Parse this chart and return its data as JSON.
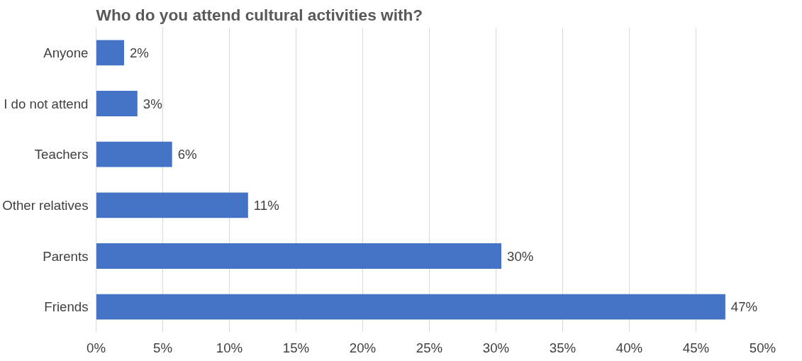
{
  "chart_data": {
    "type": "bar",
    "orientation": "horizontal",
    "title": "Who do you attend cultural activities with?",
    "categories": [
      "Anyone",
      "I do not attend",
      "Teachers",
      "Other relatives",
      "Parents",
      "Friends"
    ],
    "values": [
      2.1,
      3.1,
      5.7,
      11.4,
      30.4,
      47.2
    ],
    "value_labels": [
      "2%",
      "3%",
      "6%",
      "11%",
      "30%",
      "47%"
    ],
    "color": "#4472c4",
    "xlim": [
      0,
      50
    ],
    "xticks": [
      {
        "value": 0,
        "label": "0%"
      },
      {
        "value": 5,
        "label": "5%"
      },
      {
        "value": 10,
        "label": "10%"
      },
      {
        "value": 15,
        "label": "15%"
      },
      {
        "value": 20,
        "label": "20%"
      },
      {
        "value": 25,
        "label": "25%"
      },
      {
        "value": 30,
        "label": "30%"
      },
      {
        "value": 35,
        "label": "35%"
      },
      {
        "value": 40,
        "label": "40%"
      },
      {
        "value": 45,
        "label": "45%"
      },
      {
        "value": 50,
        "label": "50%"
      }
    ],
    "grid": "x"
  }
}
